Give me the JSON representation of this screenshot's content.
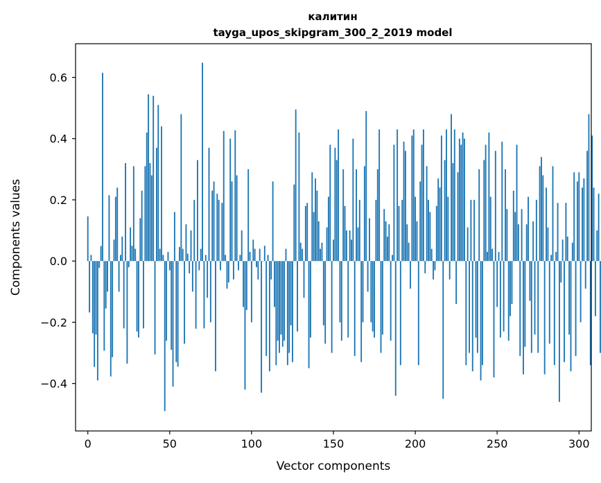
{
  "chart_data": {
    "type": "bar",
    "title": "калитин",
    "subtitle": "tayga_upos_skipgram_300_2_2019 model",
    "xlabel": "Vector components",
    "ylabel": "Components values",
    "xlim": [
      -7.5,
      307.5
    ],
    "ylim": [
      -0.555,
      0.71
    ],
    "xticks": [
      0,
      50,
      100,
      150,
      200,
      250,
      300
    ],
    "xtick_labels": [
      "0",
      "50",
      "100",
      "150",
      "200",
      "250",
      "300"
    ],
    "yticks": [
      -0.4,
      -0.2,
      0.0,
      0.2,
      0.4,
      0.6
    ],
    "ytick_labels": [
      "−0.4",
      "−0.2",
      "0.0",
      "0.2",
      "0.4",
      "0.6"
    ],
    "bar_color": "#1f77b4",
    "values": [
      0.146,
      -0.168,
      0.02,
      -0.236,
      -0.346,
      -0.24,
      -0.39,
      -0.022,
      0.049,
      0.615,
      -0.293,
      -0.155,
      -0.1,
      0.215,
      -0.377,
      -0.314,
      0.07,
      0.21,
      0.24,
      -0.1,
      0.02,
      0.08,
      -0.22,
      0.32,
      -0.335,
      -0.02,
      0.11,
      0.05,
      0.31,
      0.04,
      -0.23,
      -0.25,
      0.14,
      0.23,
      -0.22,
      0.31,
      0.42,
      0.545,
      0.32,
      0.28,
      0.54,
      -0.305,
      0.37,
      0.51,
      0.04,
      0.44,
      0.02,
      -0.49,
      -0.26,
      0.03,
      -0.03,
      -0.29,
      -0.41,
      0.16,
      -0.33,
      -0.345,
      0.046,
      0.48,
      0.04,
      -0.27,
      0.12,
      0.024,
      -0.04,
      0.1,
      -0.1,
      0.2,
      -0.221,
      0.33,
      -0.03,
      0.04,
      0.648,
      -0.22,
      0.02,
      -0.12,
      0.37,
      -0.2,
      0.23,
      0.26,
      -0.36,
      0.22,
      0.2,
      -0.03,
      0.19,
      0.425,
      0.02,
      -0.09,
      -0.07,
      0.4,
      0.26,
      -0.06,
      0.427,
      0.28,
      -0.03,
      0.02,
      0.1,
      -0.15,
      -0.42,
      -0.16,
      0.3,
      0.03,
      -0.2,
      0.07,
      0.04,
      -0.02,
      -0.06,
      0.04,
      -0.43,
      0.0,
      0.05,
      -0.31,
      0.02,
      -0.36,
      -0.06,
      0.26,
      -0.15,
      -0.34,
      -0.26,
      -0.3,
      -0.24,
      -0.28,
      -0.26,
      0.04,
      -0.34,
      -0.3,
      -0.21,
      -0.33,
      0.25,
      0.495,
      -0.23,
      0.42,
      0.06,
      0.04,
      -0.12,
      0.18,
      0.19,
      -0.35,
      -0.25,
      0.29,
      0.16,
      0.27,
      0.23,
      0.13,
      0.04,
      0.06,
      -0.21,
      -0.27,
      0.11,
      0.21,
      0.38,
      -0.3,
      0.07,
      0.37,
      0.33,
      0.43,
      -0.2,
      -0.26,
      0.3,
      0.18,
      0.1,
      -0.25,
      0.1,
      0.07,
      0.4,
      -0.31,
      0.3,
      0.11,
      0.2,
      -0.33,
      -0.2,
      0.31,
      0.49,
      -0.1,
      0.14,
      -0.2,
      -0.23,
      -0.25,
      0.2,
      0.3,
      0.43,
      -0.3,
      -0.24,
      0.17,
      0.13,
      0.08,
      0.12,
      -0.26,
      0.02,
      0.38,
      -0.44,
      0.43,
      0.18,
      -0.34,
      0.2,
      0.39,
      0.36,
      0.12,
      0.06,
      -0.09,
      0.41,
      0.43,
      0.21,
      0.13,
      -0.34,
      0.26,
      0.38,
      0.43,
      -0.04,
      0.31,
      0.2,
      0.16,
      0.04,
      -0.06,
      -0.03,
      0.18,
      0.27,
      0.24,
      0.41,
      -0.45,
      0.33,
      0.43,
      0.21,
      -0.06,
      0.48,
      0.32,
      0.43,
      -0.14,
      0.29,
      0.4,
      0.38,
      0.42,
      0.4,
      -0.34,
      0.11,
      -0.3,
      0.2,
      -0.36,
      0.2,
      -0.25,
      -0.3,
      0.3,
      -0.39,
      -0.34,
      0.33,
      0.38,
      0.03,
      0.42,
      0.21,
      0.04,
      -0.38,
      0.36,
      -0.15,
      0.03,
      -0.25,
      0.39,
      -0.23,
      0.3,
      0.17,
      -0.26,
      -0.18,
      -0.14,
      0.23,
      0.16,
      0.38,
      0.12,
      -0.31,
      0.17,
      -0.37,
      -0.28,
      0.12,
      0.21,
      -0.13,
      -0.3,
      0.13,
      -0.24,
      0.2,
      -0.3,
      0.31,
      0.34,
      0.28,
      -0.37,
      0.24,
      0.11,
      -0.27,
      0.02,
      0.31,
      -0.34,
      0.03,
      0.19,
      -0.46,
      -0.07,
      0.07,
      -0.33,
      0.19,
      0.08,
      -0.24,
      -0.36,
      0.06,
      0.29,
      -0.31,
      0.26,
      0.29,
      -0.2,
      0.24,
      0.27,
      -0.09,
      0.36,
      0.48,
      -0.34,
      0.41,
      0.24,
      -0.18,
      0.1,
      0.22,
      -0.3,
      -0.33,
      0.43
    ]
  }
}
